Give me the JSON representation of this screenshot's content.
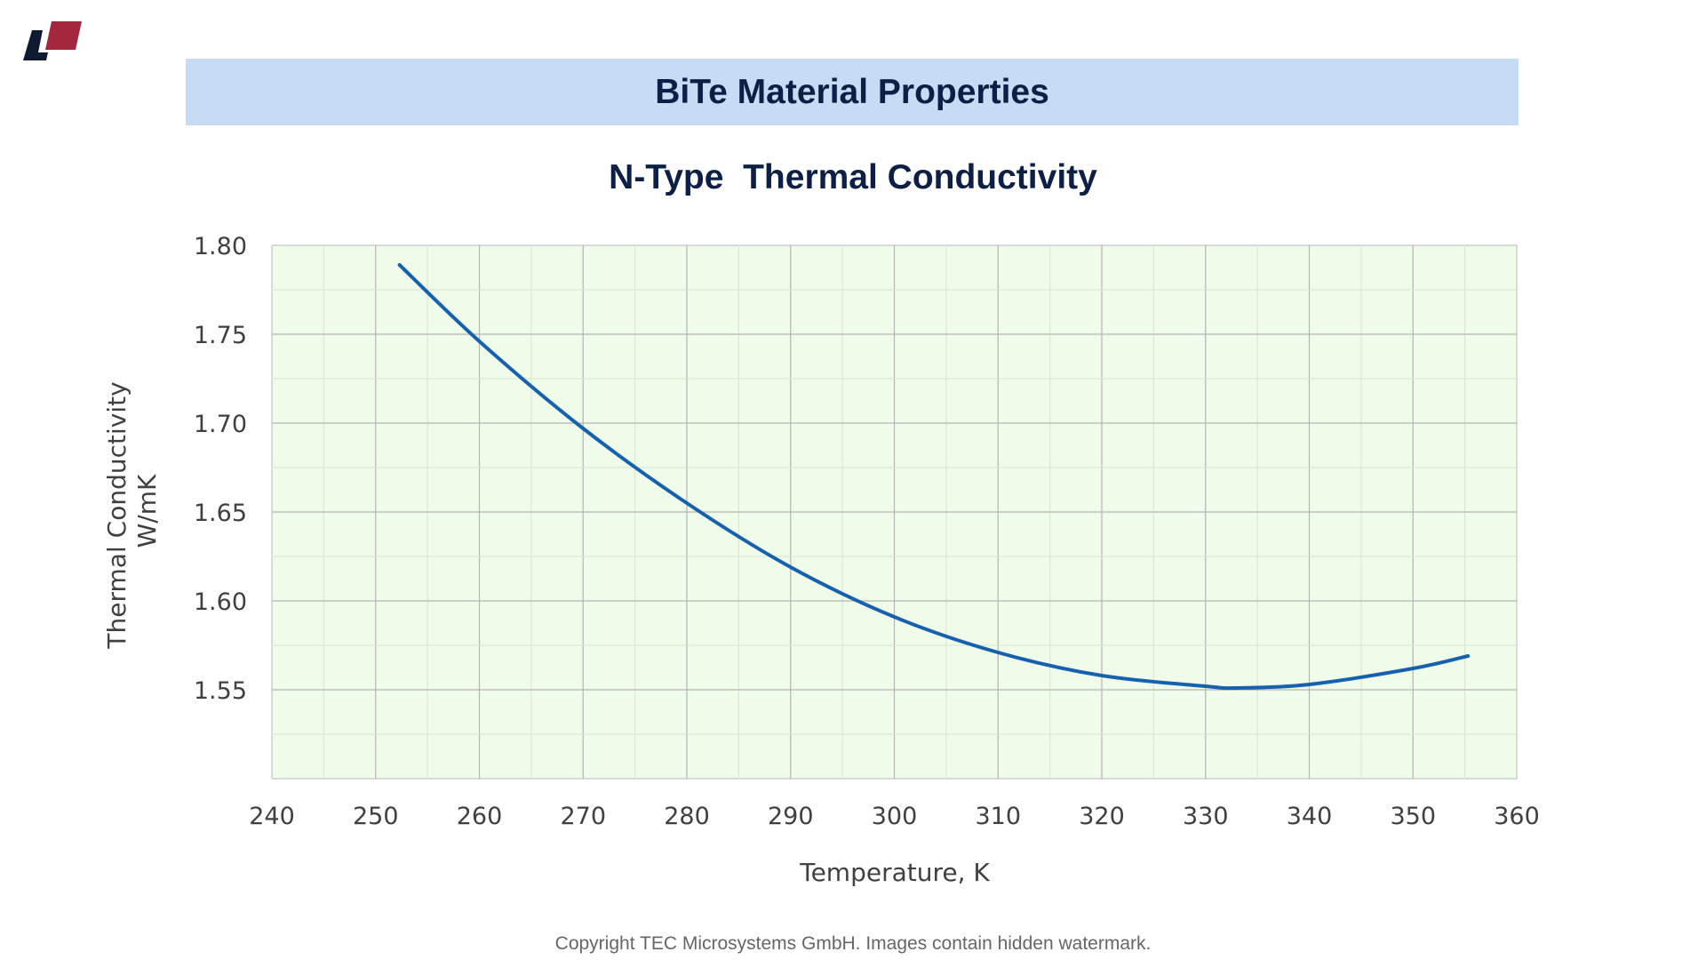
{
  "header": {
    "title": "BiTe Material Properties"
  },
  "logo": {
    "colors": [
      "#0e1a30",
      "#a3273f"
    ]
  },
  "chart_data": {
    "type": "line",
    "title": "N-Type  Thermal Conductivity",
    "xlabel": "Temperature, K",
    "ylabel": [
      "Thermal Conductivity",
      "W/mK"
    ],
    "xlim": [
      240,
      360
    ],
    "ylim": [
      1.5,
      1.8
    ],
    "xticks": [
      "240",
      "250",
      "260",
      "270",
      "280",
      "290",
      "300",
      "310",
      "320",
      "330",
      "340",
      "350",
      "360"
    ],
    "yticks": [
      "1.55",
      "1.60",
      "1.65",
      "1.70",
      "1.75",
      "1.80"
    ],
    "grid": true,
    "background": "#eefce9",
    "series": [
      {
        "name": "N-Type",
        "color": "#1660ad",
        "x": [
          252.3,
          260,
          270,
          280,
          290,
          300,
          310,
          320,
          330,
          333,
          340,
          350,
          355.3
        ],
        "y": [
          1.789,
          1.746,
          1.697,
          1.655,
          1.619,
          1.591,
          1.571,
          1.558,
          1.552,
          1.551,
          1.553,
          1.562,
          1.569
        ]
      }
    ]
  },
  "footer": {
    "copyright": "Copyright TEC Microsystems GmbH. Images contain hidden watermark."
  }
}
